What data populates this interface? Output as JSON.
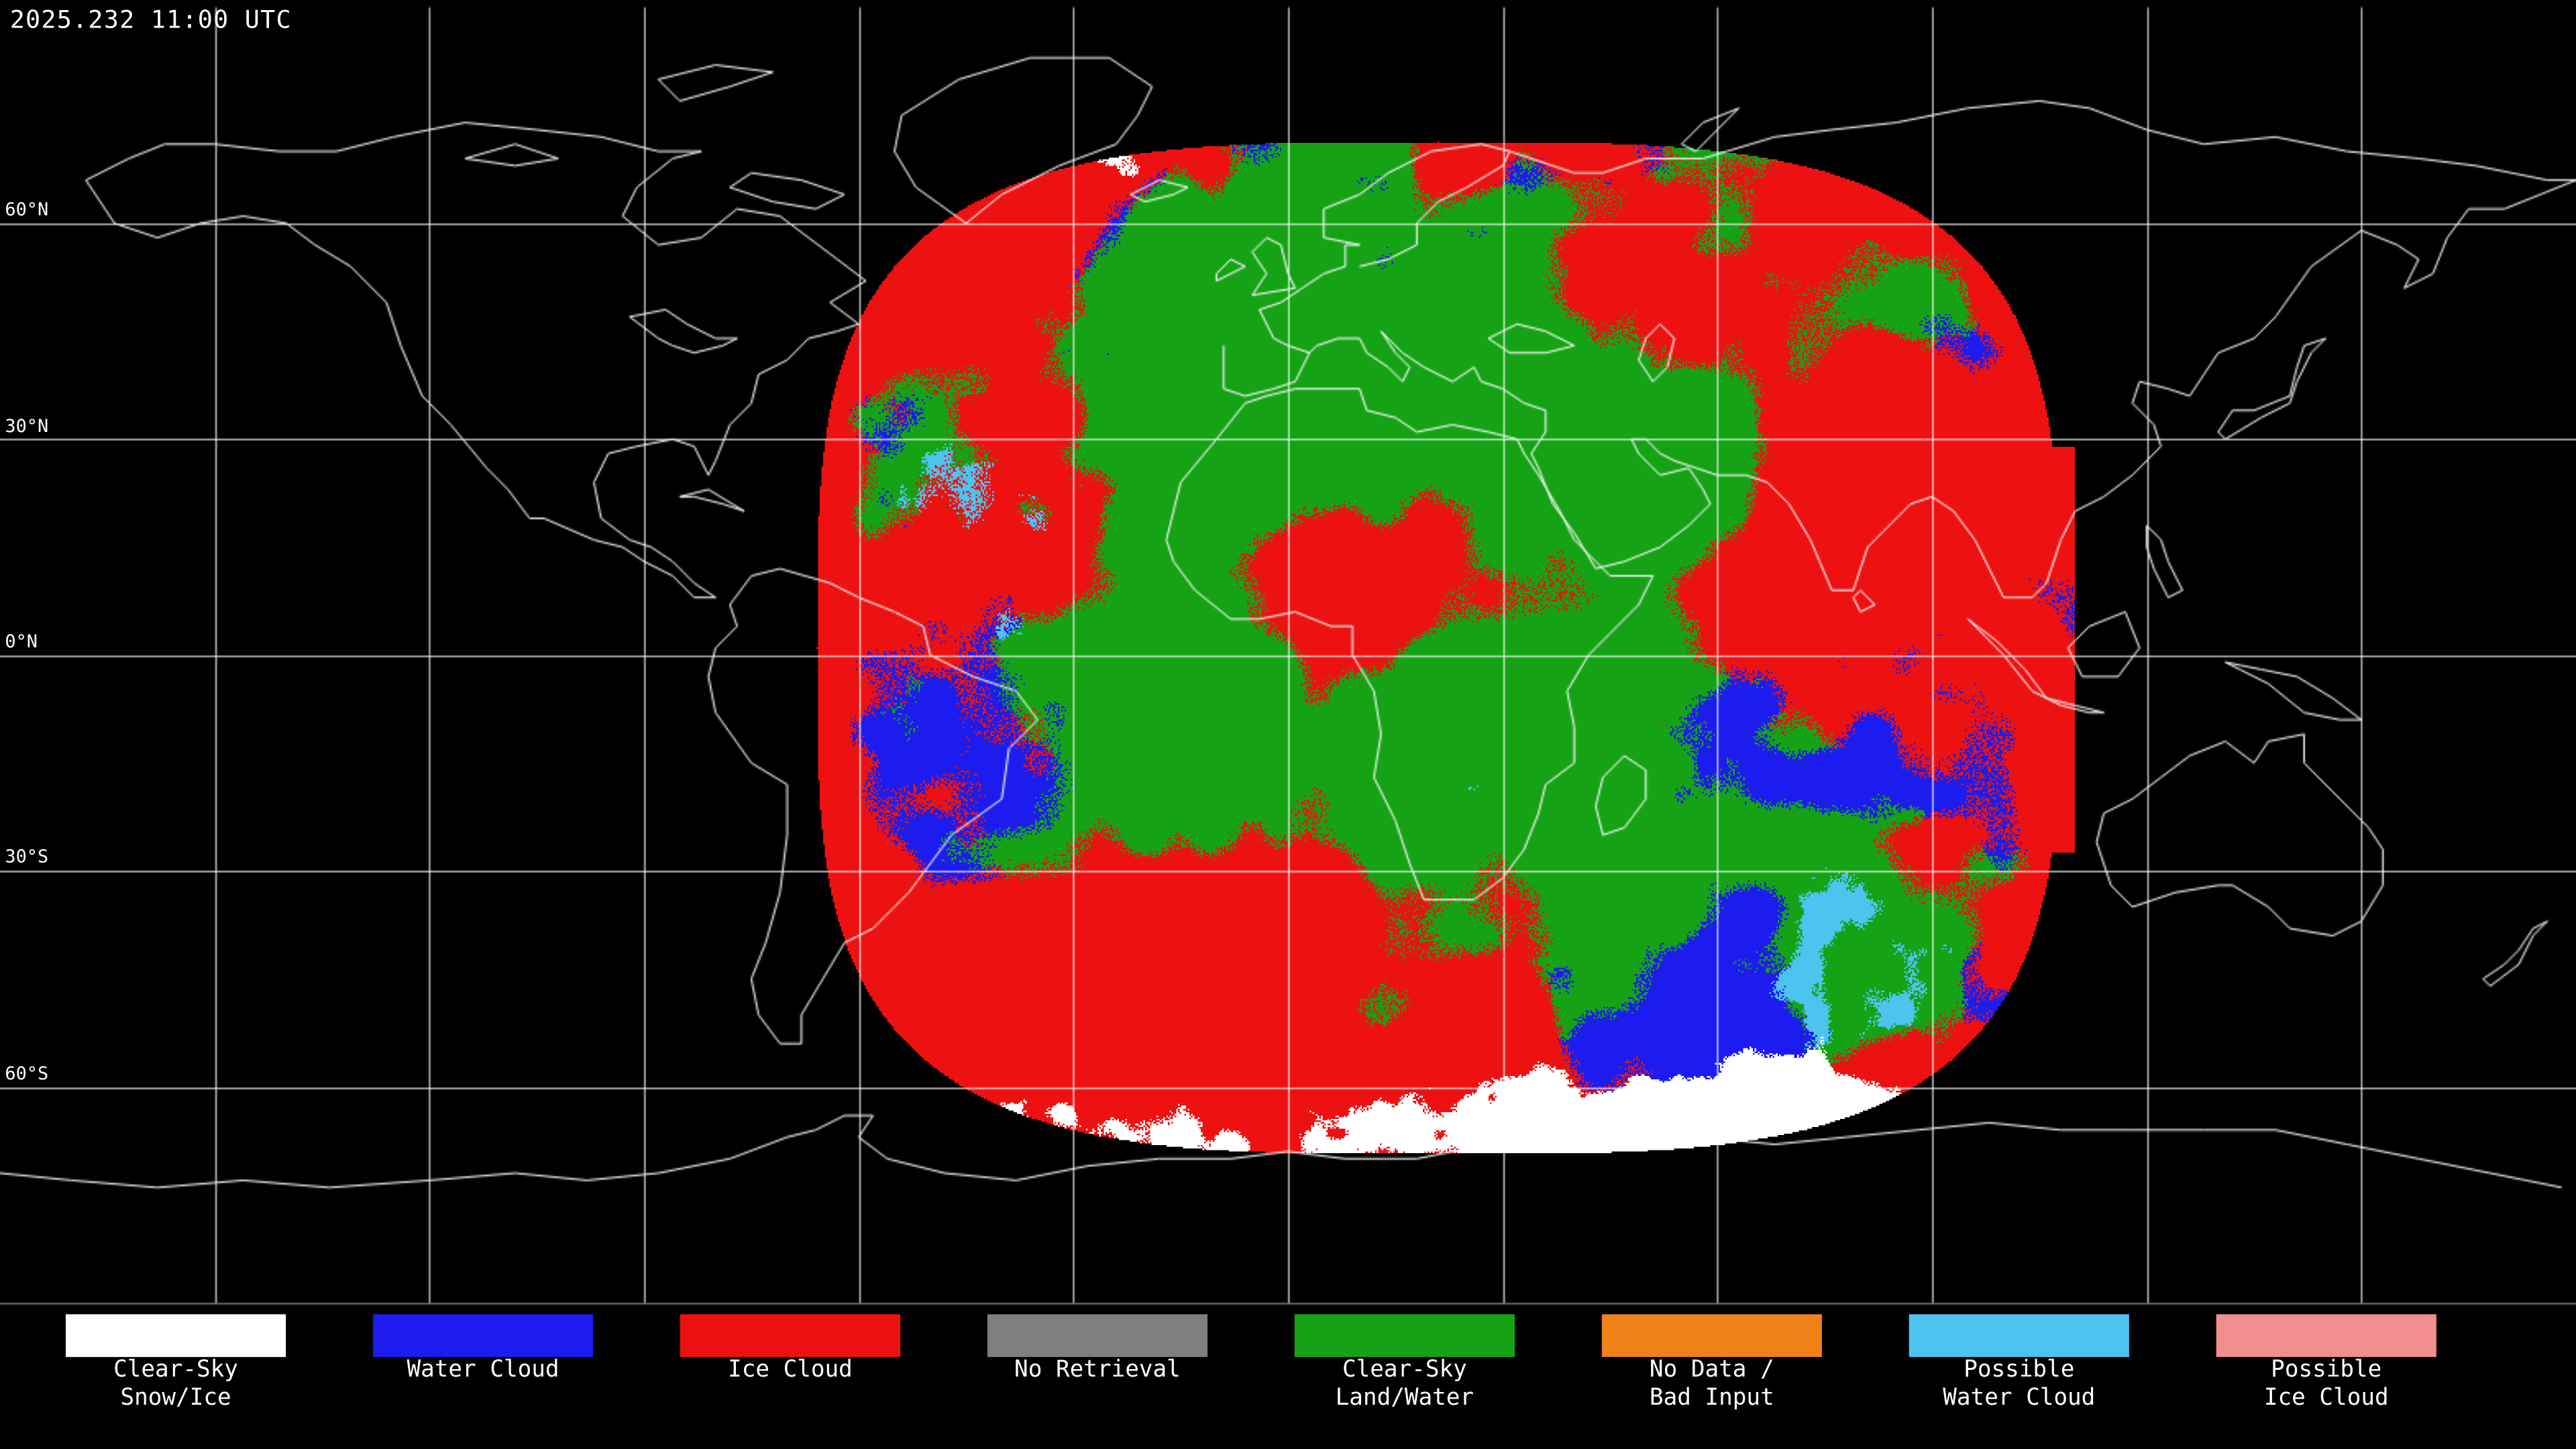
{
  "header": {
    "timestamp": "2025.232 11:00 UTC"
  },
  "map": {
    "background": "#000000",
    "graticule_color": "#FFFFFF",
    "coastline_color": "#FFFFFF",
    "lat_labels": [
      {
        "text": "60°N"
      },
      {
        "text": "30°N"
      },
      {
        "text": "0°N"
      },
      {
        "text": "30°S"
      },
      {
        "text": "60°S"
      }
    ]
  },
  "classes": {
    "clear_sky_snow_ice": "#FFFFFF",
    "water_cloud": "#1C1CF0",
    "ice_cloud": "#EE1111",
    "no_retrieval": "#7F7F7F",
    "clear_sky_land_water": "#15A315",
    "no_data_bad_input": "#F08018",
    "possible_water_cloud": "#4DC3F0",
    "possible_ice_cloud": "#F18E8E"
  },
  "legend": {
    "items": [
      {
        "line1": "Clear-Sky",
        "line2": "Snow/Ice",
        "color": "#FFFFFF"
      },
      {
        "line1": "Water Cloud",
        "line2": "",
        "color": "#1C1CF0"
      },
      {
        "line1": "Ice Cloud",
        "line2": "",
        "color": "#EE1111"
      },
      {
        "line1": "No Retrieval",
        "line2": "",
        "color": "#7F7F7F"
      },
      {
        "line1": "Clear-Sky",
        "line2": "Land/Water",
        "color": "#15A315"
      },
      {
        "line1": "No Data /",
        "line2": "Bad Input",
        "color": "#F08018"
      },
      {
        "line1": "Possible",
        "line2": "Water Cloud",
        "color": "#4DC3F0"
      },
      {
        "line1": "Possible",
        "line2": "Ice Cloud",
        "color": "#F18E8E"
      }
    ]
  }
}
